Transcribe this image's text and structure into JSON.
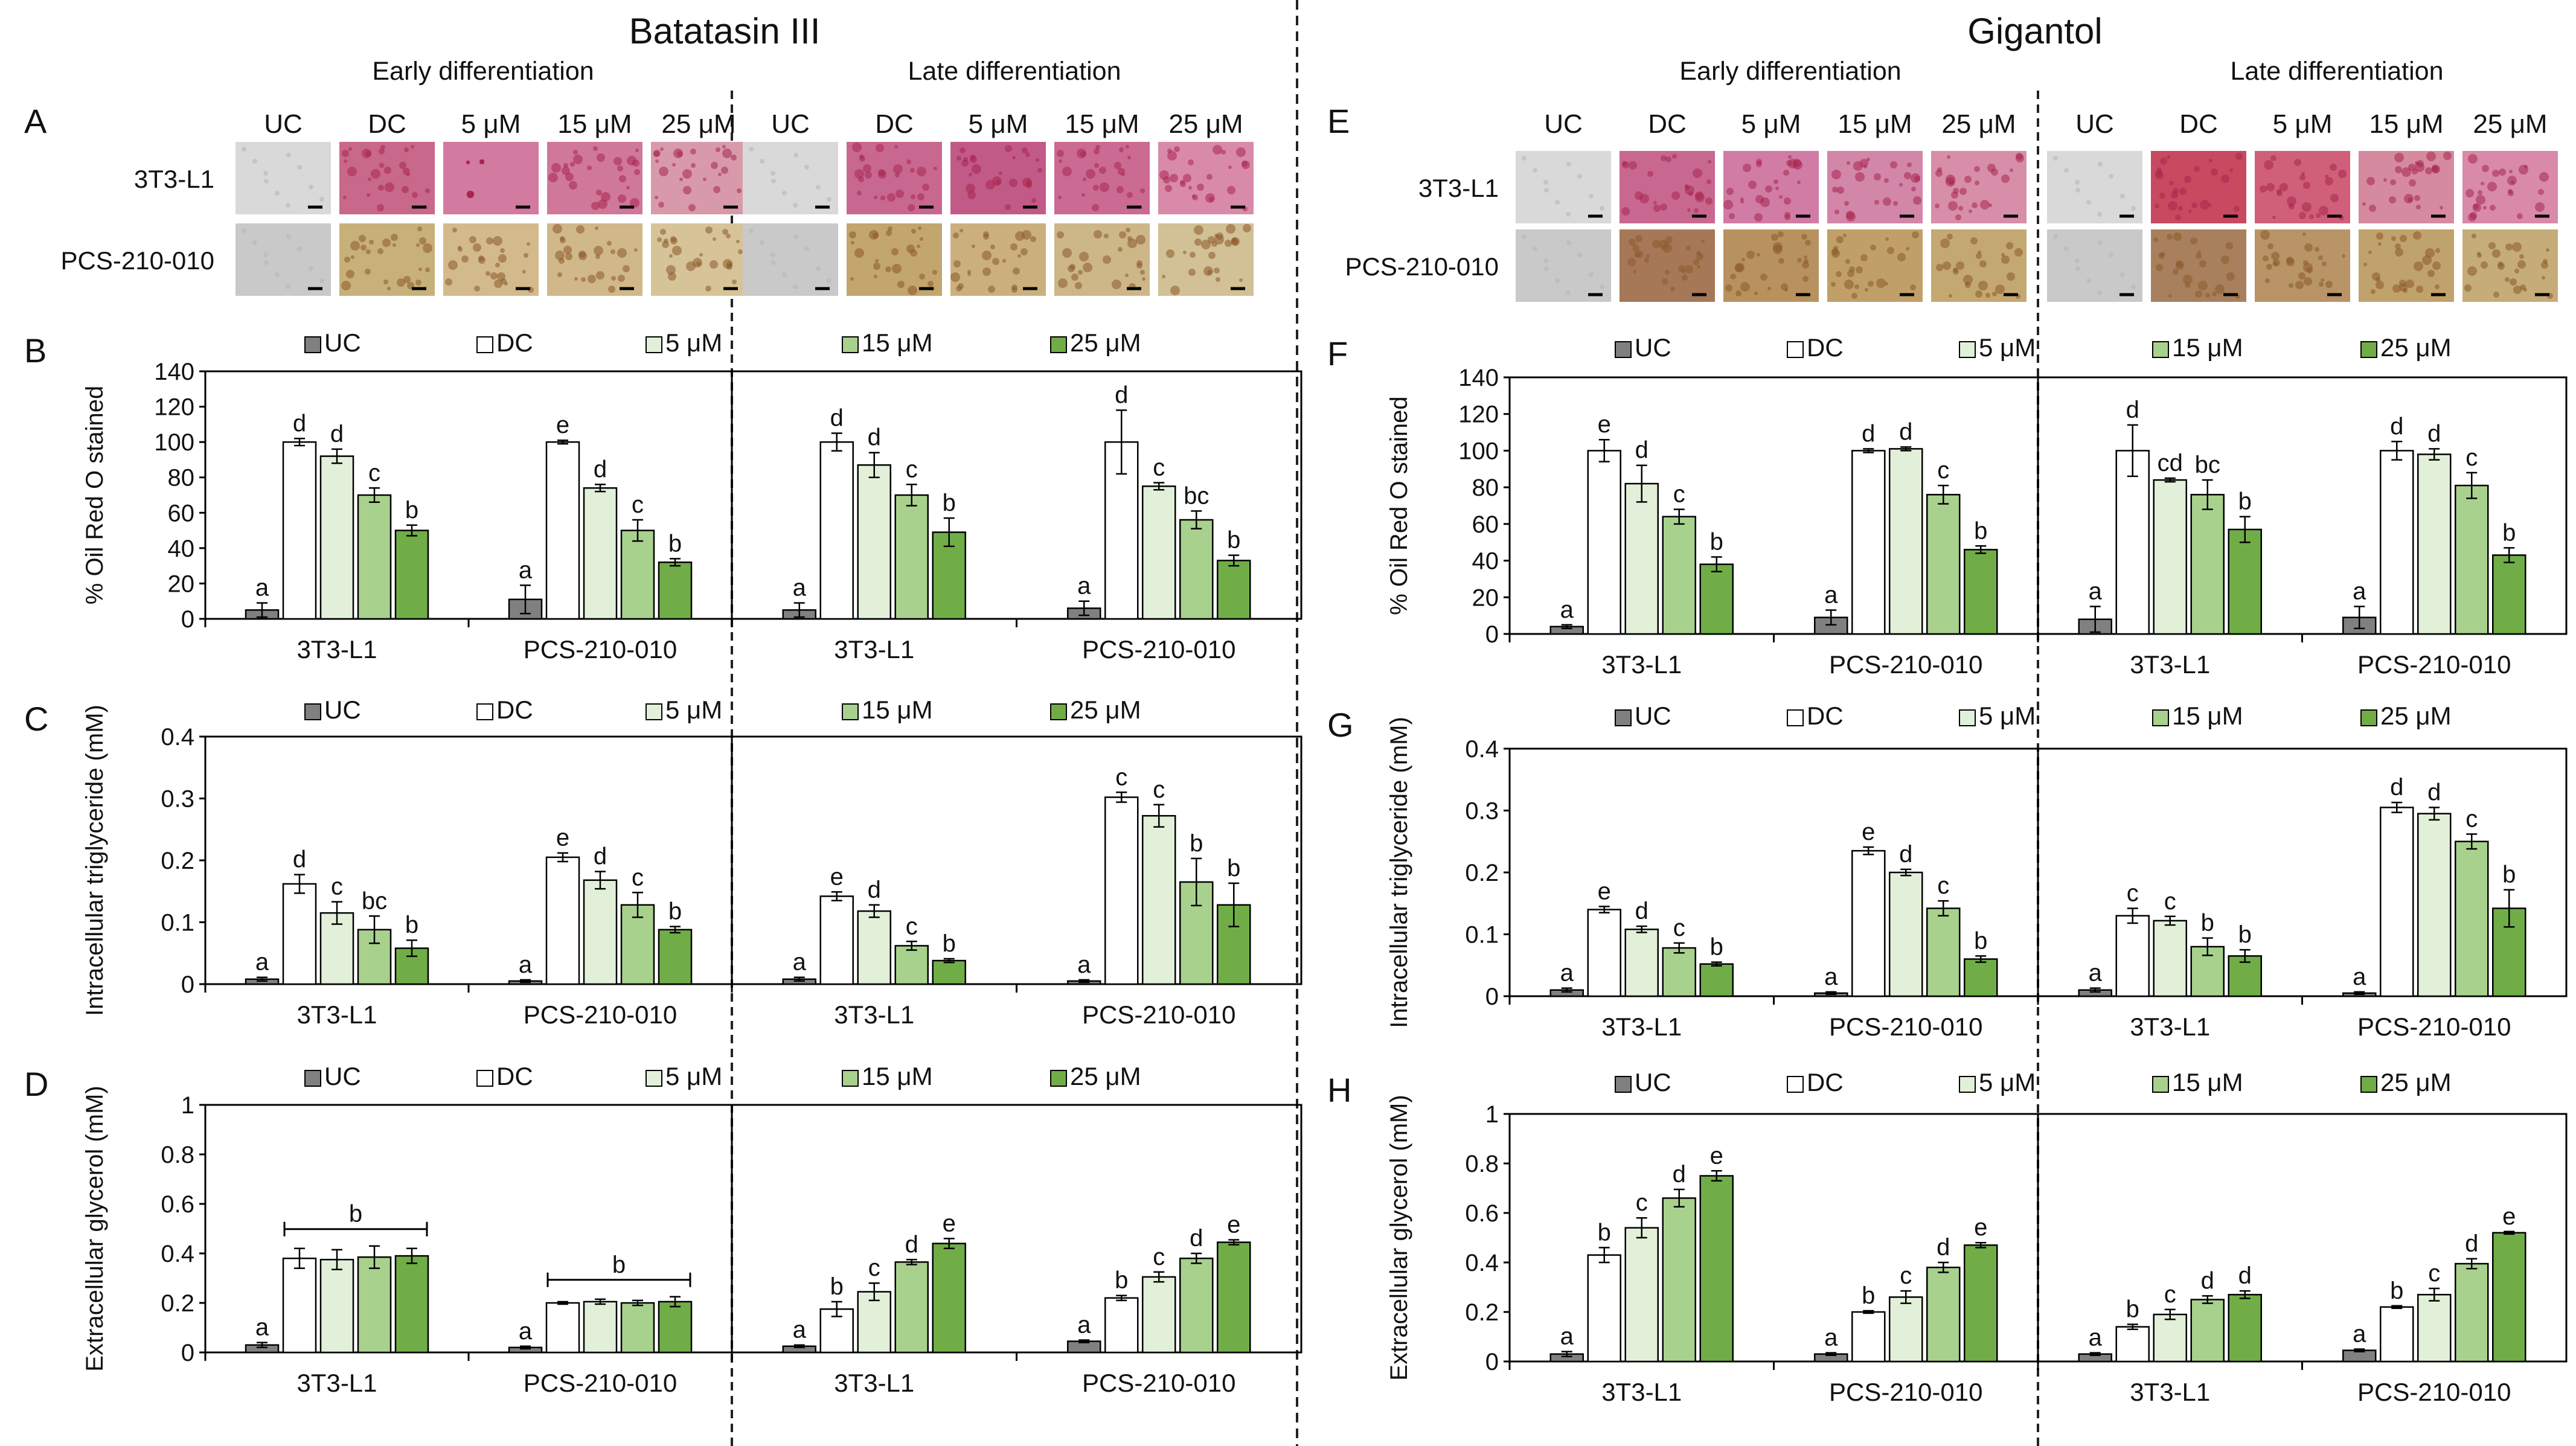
{
  "figure": {
    "compounds": [
      {
        "name": "Batatasin III",
        "letters": {
          "images": "A",
          "oil": "B",
          "tg": "C",
          "gly": "D"
        },
        "stages": [
          "Early differentiation",
          "Late differentiation"
        ],
        "image_columns": [
          "UC",
          "DC",
          "5 μM",
          "15 μM",
          "25 μM"
        ],
        "image_rows": [
          "3T3-L1",
          "PCS-210-010"
        ],
        "image_colors": [
          [
            [
              "#d9d9d9",
              "#c8688a",
              "#d27aa0",
              "#d0789a",
              "#d89aaa"
            ],
            [
              "#d9d9d9",
              "#c86890",
              "#c25a88",
              "#cb6a92",
              "#d98aa8"
            ]
          ],
          [
            [
              "#c9c9c9",
              "#c7b07a",
              "#d3ba8c",
              "#d0b88a",
              "#d6c498"
            ],
            [
              "#c9c9c9",
              "#c3a56e",
              "#cbb07e",
              "#cdb688",
              "#d2c096"
            ]
          ]
        ]
      },
      {
        "name": "Gigantol",
        "letters": {
          "images": "E",
          "oil": "F",
          "tg": "G",
          "gly": "H"
        },
        "stages": [
          "Early differentiation",
          "Late differentiation"
        ],
        "image_columns": [
          "UC",
          "DC",
          "5 μM",
          "15 μM",
          "25 μM"
        ],
        "image_rows": [
          "3T3-L1",
          "PCS-210-010"
        ],
        "image_colors": [
          [
            [
              "#d9d9d9",
              "#c86890",
              "#d07ca4",
              "#d286a8",
              "#d78ea8"
            ],
            [
              "#d9d9d9",
              "#c84a60",
              "#d0607a",
              "#d68aa0",
              "#d88aa8"
            ]
          ],
          [
            [
              "#c9c9c9",
              "#a67858",
              "#b8925e",
              "#c0a068",
              "#c4a872"
            ],
            [
              "#c9c9c9",
              "#a8805e",
              "#b89466",
              "#c0a26c",
              "#c6ac78"
            ]
          ]
        ]
      }
    ],
    "legend_labels": [
      "UC",
      "DC",
      "5 μM",
      "15 μM",
      "25 μM"
    ],
    "series_colors": [
      "#808080",
      "#ffffff",
      "#e2f0d9",
      "#a9d18e",
      "#70ad47"
    ],
    "cell_lines": [
      "3T3-L1",
      "PCS-210-010"
    ]
  },
  "chart_data": [
    {
      "type": "bar",
      "title": "% Oil Red O stained",
      "ylabel": "% Oil Red O stained",
      "compound": "Batatasin III",
      "ylim": [
        0,
        140
      ],
      "yticks": [
        "0",
        "20",
        "40",
        "60",
        "80",
        "100",
        "120",
        "140"
      ],
      "series": [
        "UC",
        "DC",
        "5 μM",
        "15 μM",
        "25 μM"
      ],
      "groups": [
        {
          "stage": "Early differentiation",
          "cell": "3T3-L1",
          "values": [
            5,
            100,
            92,
            70,
            50
          ],
          "errors": [
            4,
            2,
            4,
            4,
            3
          ],
          "letters": [
            "a",
            "d",
            "d",
            "c",
            "b"
          ]
        },
        {
          "stage": "Early differentiation",
          "cell": "PCS-210-010",
          "values": [
            11,
            100,
            74,
            50,
            32
          ],
          "errors": [
            8,
            1,
            2,
            6,
            2
          ],
          "letters": [
            "a",
            "e",
            "d",
            "c",
            "b"
          ]
        },
        {
          "stage": "Late differentiation",
          "cell": "3T3-L1",
          "values": [
            5,
            100,
            87,
            70,
            49
          ],
          "errors": [
            4,
            5,
            7,
            6,
            8
          ],
          "letters": [
            "a",
            "d",
            "d",
            "c",
            "b"
          ]
        },
        {
          "stage": "Late differentiation",
          "cell": "PCS-210-010",
          "values": [
            6,
            100,
            75,
            56,
            33
          ],
          "errors": [
            4,
            18,
            2,
            5,
            3
          ],
          "letters": [
            "a",
            "d",
            "c",
            "bc",
            "b"
          ]
        }
      ]
    },
    {
      "type": "bar",
      "title": "Intracellular triglyceride (mM)",
      "ylabel": "Intracellular triglyceride (mM)",
      "compound": "Batatasin III",
      "ylim": [
        0,
        0.4
      ],
      "yticks": [
        "0",
        "0.1",
        "0.2",
        "0.3",
        "0.4"
      ],
      "series": [
        "UC",
        "DC",
        "5 μM",
        "15 μM",
        "25 μM"
      ],
      "groups": [
        {
          "stage": "Early differentiation",
          "cell": "3T3-L1",
          "values": [
            0.008,
            0.162,
            0.115,
            0.088,
            0.058
          ],
          "errors": [
            0.003,
            0.015,
            0.018,
            0.022,
            0.013
          ],
          "letters": [
            "a",
            "d",
            "c",
            "bc",
            "b"
          ]
        },
        {
          "stage": "Early differentiation",
          "cell": "PCS-210-010",
          "values": [
            0.005,
            0.205,
            0.168,
            0.128,
            0.088
          ],
          "errors": [
            0.002,
            0.007,
            0.014,
            0.02,
            0.005
          ],
          "letters": [
            "a",
            "e",
            "d",
            "c",
            "b"
          ]
        },
        {
          "stage": "Late differentiation",
          "cell": "3T3-L1",
          "values": [
            0.008,
            0.142,
            0.118,
            0.062,
            0.038
          ],
          "errors": [
            0.003,
            0.007,
            0.01,
            0.007,
            0.003
          ],
          "letters": [
            "a",
            "e",
            "d",
            "c",
            "b"
          ]
        },
        {
          "stage": "Late differentiation",
          "cell": "PCS-210-010",
          "values": [
            0.005,
            0.302,
            0.272,
            0.165,
            0.128
          ],
          "errors": [
            0.002,
            0.008,
            0.018,
            0.038,
            0.035
          ],
          "letters": [
            "a",
            "c",
            "c",
            "b",
            "b"
          ]
        }
      ]
    },
    {
      "type": "bar",
      "title": "Extracellular glycerol (mM)",
      "ylabel": "Extracellular glycerol (mM)",
      "compound": "Batatasin III",
      "ylim": [
        0,
        1
      ],
      "yticks": [
        "0",
        "0.2",
        "0.4",
        "0.6",
        "0.8",
        "1"
      ],
      "series": [
        "UC",
        "DC",
        "5 μM",
        "15 μM",
        "25 μM"
      ],
      "groups": [
        {
          "stage": "Early differentiation",
          "cell": "3T3-L1",
          "values": [
            0.03,
            0.38,
            0.375,
            0.385,
            0.39
          ],
          "errors": [
            0.01,
            0.04,
            0.04,
            0.045,
            0.03
          ],
          "letters": [
            "a",
            "",
            "",
            "",
            ""
          ],
          "bracket": "b"
        },
        {
          "stage": "Early differentiation",
          "cell": "PCS-210-010",
          "values": [
            0.02,
            0.2,
            0.205,
            0.2,
            0.205
          ],
          "errors": [
            0.005,
            0.005,
            0.01,
            0.01,
            0.02
          ],
          "letters": [
            "a",
            "",
            "",
            "",
            ""
          ],
          "bracket": "b"
        },
        {
          "stage": "Late differentiation",
          "cell": "3T3-L1",
          "values": [
            0.025,
            0.175,
            0.245,
            0.365,
            0.44
          ],
          "errors": [
            0.005,
            0.03,
            0.035,
            0.01,
            0.02
          ],
          "letters": [
            "a",
            "b",
            "c",
            "d",
            "e"
          ]
        },
        {
          "stage": "Late differentiation",
          "cell": "PCS-210-010",
          "values": [
            0.045,
            0.22,
            0.305,
            0.38,
            0.445
          ],
          "errors": [
            0.005,
            0.01,
            0.02,
            0.02,
            0.01
          ],
          "letters": [
            "a",
            "b",
            "c",
            "d",
            "e"
          ]
        }
      ]
    },
    {
      "type": "bar",
      "title": "% Oil Red O stained",
      "ylabel": "% Oil Red O stained",
      "compound": "Gigantol",
      "ylim": [
        0,
        140
      ],
      "yticks": [
        "0",
        "20",
        "40",
        "60",
        "80",
        "100",
        "120",
        "140"
      ],
      "series": [
        "UC",
        "DC",
        "5 μM",
        "15 μM",
        "25 μM"
      ],
      "groups": [
        {
          "stage": "Early differentiation",
          "cell": "3T3-L1",
          "values": [
            4,
            100,
            82,
            64,
            38
          ],
          "errors": [
            1,
            6,
            10,
            4,
            4
          ],
          "letters": [
            "a",
            "e",
            "d",
            "c",
            "b"
          ]
        },
        {
          "stage": "Early differentiation",
          "cell": "PCS-210-010",
          "values": [
            9,
            100,
            101,
            76,
            46
          ],
          "errors": [
            4,
            1,
            1,
            5,
            2
          ],
          "letters": [
            "a",
            "d",
            "d",
            "c",
            "b"
          ]
        },
        {
          "stage": "Late differentiation",
          "cell": "3T3-L1",
          "values": [
            8,
            100,
            84,
            76,
            57
          ],
          "errors": [
            7,
            14,
            1,
            8,
            7
          ],
          "letters": [
            "a",
            "d",
            "cd",
            "bc",
            "b"
          ]
        },
        {
          "stage": "Late differentiation",
          "cell": "PCS-210-010",
          "values": [
            9,
            100,
            98,
            81,
            43
          ],
          "errors": [
            6,
            5,
            3,
            7,
            4
          ],
          "letters": [
            "a",
            "d",
            "d",
            "c",
            "b"
          ]
        }
      ]
    },
    {
      "type": "bar",
      "title": "Intracellular triglyceride (mM)",
      "ylabel": "Intracellular triglyceride (mM)",
      "compound": "Gigantol",
      "ylim": [
        0,
        0.4
      ],
      "yticks": [
        "0",
        "0.1",
        "0.2",
        "0.3",
        "0.4"
      ],
      "series": [
        "UC",
        "DC",
        "5 μM",
        "15 μM",
        "25 μM"
      ],
      "groups": [
        {
          "stage": "Early differentiation",
          "cell": "3T3-L1",
          "values": [
            0.01,
            0.14,
            0.108,
            0.078,
            0.052
          ],
          "errors": [
            0.003,
            0.005,
            0.005,
            0.008,
            0.003
          ],
          "letters": [
            "a",
            "e",
            "d",
            "c",
            "b"
          ]
        },
        {
          "stage": "Early differentiation",
          "cell": "PCS-210-010",
          "values": [
            0.005,
            0.235,
            0.2,
            0.142,
            0.06
          ],
          "errors": [
            0.002,
            0.006,
            0.005,
            0.012,
            0.005
          ],
          "letters": [
            "a",
            "e",
            "d",
            "c",
            "b"
          ]
        },
        {
          "stage": "Late differentiation",
          "cell": "3T3-L1",
          "values": [
            0.01,
            0.13,
            0.122,
            0.08,
            0.065
          ],
          "errors": [
            0.003,
            0.012,
            0.007,
            0.014,
            0.01
          ],
          "letters": [
            "a",
            "c",
            "c",
            "b",
            "b"
          ]
        },
        {
          "stage": "Late differentiation",
          "cell": "PCS-210-010",
          "values": [
            0.005,
            0.305,
            0.295,
            0.25,
            0.142
          ],
          "errors": [
            0.002,
            0.008,
            0.01,
            0.012,
            0.03
          ],
          "letters": [
            "a",
            "d",
            "d",
            "c",
            "b"
          ]
        }
      ]
    },
    {
      "type": "bar",
      "title": "Extracellular glycerol (mM)",
      "ylabel": "Extracellular glycerol (mM)",
      "compound": "Gigantol",
      "ylim": [
        0,
        1
      ],
      "yticks": [
        "0",
        "0.2",
        "0.4",
        "0.6",
        "0.8",
        "1"
      ],
      "series": [
        "UC",
        "DC",
        "5 μM",
        "15 μM",
        "25 μM"
      ],
      "groups": [
        {
          "stage": "Early differentiation",
          "cell": "3T3-L1",
          "values": [
            0.03,
            0.43,
            0.54,
            0.66,
            0.75
          ],
          "errors": [
            0.01,
            0.03,
            0.04,
            0.035,
            0.02
          ],
          "letters": [
            "a",
            "b",
            "c",
            "d",
            "e"
          ]
        },
        {
          "stage": "Early differentiation",
          "cell": "PCS-210-010",
          "values": [
            0.03,
            0.2,
            0.26,
            0.38,
            0.47
          ],
          "errors": [
            0.005,
            0.005,
            0.025,
            0.02,
            0.01
          ],
          "letters": [
            "a",
            "b",
            "c",
            "d",
            "e"
          ]
        },
        {
          "stage": "Late differentiation",
          "cell": "3T3-L1",
          "values": [
            0.03,
            0.14,
            0.19,
            0.25,
            0.27
          ],
          "errors": [
            0.005,
            0.01,
            0.02,
            0.015,
            0.015
          ],
          "letters": [
            "a",
            "b",
            "c",
            "d",
            "d"
          ]
        },
        {
          "stage": "Late differentiation",
          "cell": "PCS-210-010",
          "values": [
            0.045,
            0.22,
            0.27,
            0.395,
            0.52
          ],
          "errors": [
            0.005,
            0.005,
            0.025,
            0.02,
            0.005
          ],
          "letters": [
            "a",
            "b",
            "c",
            "d",
            "e"
          ]
        }
      ]
    }
  ]
}
